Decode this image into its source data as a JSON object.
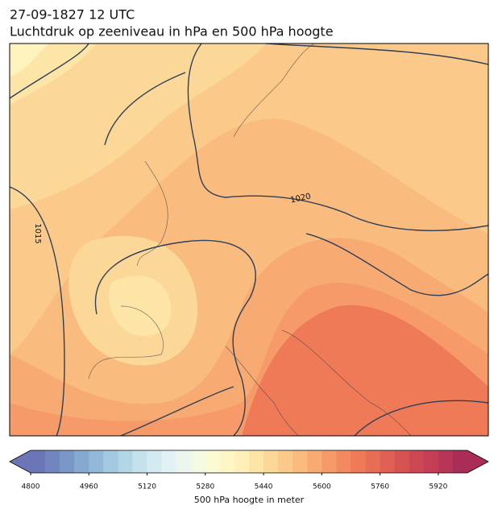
{
  "header": {
    "date": "27-09-1827 12 UTC",
    "title": "Luchtdruk op zeeniveau in hPa en 500 hPa hoogte"
  },
  "map": {
    "contour_labels": [
      "1020",
      "1015"
    ]
  },
  "colorbar": {
    "label": "500 hPa hoogte in meter",
    "lim": [
      4800,
      6000
    ],
    "ticks": [
      4800,
      4960,
      5120,
      5280,
      5440,
      5600,
      5760,
      5920
    ],
    "colors": [
      "#6b76b7",
      "#7186bf",
      "#7a97c7",
      "#86a9cf",
      "#93b9d8",
      "#a2c9df",
      "#b3d6e6",
      "#c4e1ec",
      "#d4eaf1",
      "#e2f1f3",
      "#ecf6ef",
      "#f4f9e2",
      "#fbfad2",
      "#fef6c4",
      "#fef0b8",
      "#fde5a8",
      "#fcd898",
      "#fbca8a",
      "#f9bb7e",
      "#f7ab72",
      "#f59a68",
      "#f2895f",
      "#ee7a58",
      "#e86d55",
      "#e06053",
      "#d65352",
      "#cd4853",
      "#c43e55",
      "#b73556",
      "#a92d57"
    ]
  }
}
